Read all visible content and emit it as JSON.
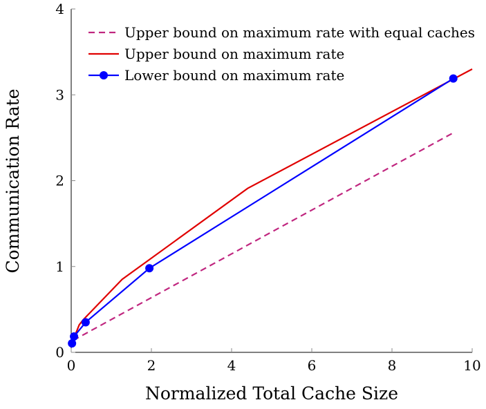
{
  "chart_data": {
    "type": "line",
    "title": "",
    "xlabel": "Normalized Total Cache Size",
    "ylabel": "Communication Rate",
    "xlim": [
      0,
      10
    ],
    "ylim": [
      0,
      4
    ],
    "xticks": [
      0,
      2,
      4,
      6,
      8,
      10
    ],
    "yticks": [
      0,
      1,
      2,
      3,
      4
    ],
    "grid": false,
    "legend_position": "top-left",
    "series": [
      {
        "name": "Upper bound on maximum rate with equal caches",
        "color": "#c0267f",
        "style": "dashed",
        "markers": false,
        "x": [
          0.05,
          9.5
        ],
        "y": [
          0.14,
          2.55
        ]
      },
      {
        "name": "Upper bound on maximum rate",
        "color": "#e00000",
        "style": "solid",
        "markers": false,
        "x": [
          0.02,
          0.2,
          0.3,
          1.27,
          4.4,
          10
        ],
        "y": [
          0.11,
          0.32,
          0.38,
          0.85,
          1.91,
          3.3
        ]
      },
      {
        "name": "Lower bound on maximum rate",
        "color": "#0000ff",
        "style": "solid",
        "markers": true,
        "x": [
          0.02,
          0.07,
          0.36,
          1.95,
          9.53
        ],
        "y": [
          0.105,
          0.185,
          0.35,
          0.98,
          3.19
        ]
      }
    ]
  }
}
